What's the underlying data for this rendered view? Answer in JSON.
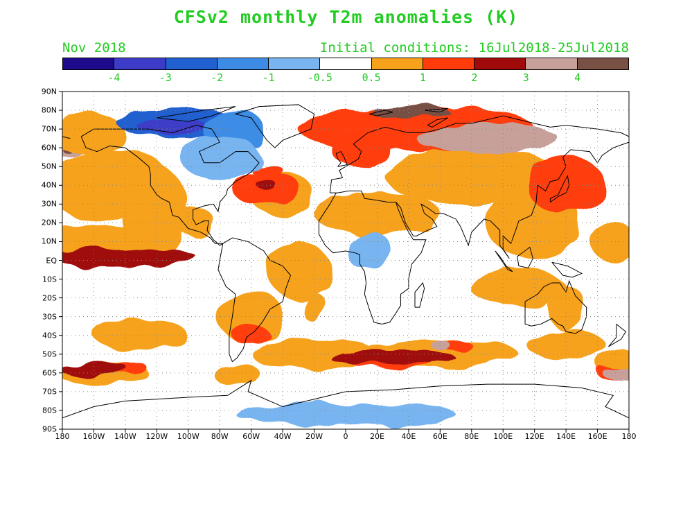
{
  "title": "CFSv2 monthly T2m anomalies (K)",
  "month_label": "Nov 2018",
  "init_label": "Initial conditions: 16Jul2018-25Jul2018",
  "text_color": "#22cc22",
  "colorbar": {
    "colors": [
      "#1e0a8c",
      "#3c3cc8",
      "#2060d0",
      "#3c8ce6",
      "#78b4f0",
      "#ffffff",
      "#f7a21b",
      "#ff3c0a",
      "#a00a0a",
      "#c8a09a",
      "#785044"
    ],
    "labels": [
      "-4",
      "-3",
      "-2",
      "-1",
      "-0.5",
      "0.5",
      "1",
      "2",
      "3",
      "4"
    ]
  },
  "axes": {
    "lat_labels": [
      "90N",
      "80N",
      "70N",
      "60N",
      "50N",
      "40N",
      "30N",
      "20N",
      "10N",
      "EQ",
      "10S",
      "20S",
      "30S",
      "40S",
      "50S",
      "60S",
      "70S",
      "80S",
      "90S"
    ],
    "lon_labels": [
      "180",
      "160W",
      "140W",
      "120W",
      "100W",
      "80W",
      "60W",
      "40W",
      "20W",
      "0",
      "20E",
      "40E",
      "60E",
      "80E",
      "100E",
      "120E",
      "140E",
      "160E",
      "180"
    ],
    "lat_range": [
      -90,
      90
    ],
    "lon_range": [
      -180,
      180
    ],
    "grid": "dotted"
  },
  "anomaly_regions": [
    {
      "lon": -178,
      "lat": 60,
      "value": 3,
      "rx": 10,
      "ry": 4
    },
    {
      "lon": -178,
      "lat": 60,
      "value": 4,
      "rx": 3,
      "ry": 2
    },
    {
      "lon": -165,
      "lat": 68,
      "value": 0.5,
      "rx": 25,
      "ry": 10
    },
    {
      "lon": -105,
      "lat": 73,
      "value": -2,
      "rx": 40,
      "ry": 8
    },
    {
      "lon": -110,
      "lat": 71,
      "value": -3,
      "rx": 22,
      "ry": 4
    },
    {
      "lon": -70,
      "lat": 68,
      "value": -1,
      "rx": 20,
      "ry": 12
    },
    {
      "lon": -80,
      "lat": 55,
      "value": -0.5,
      "rx": 25,
      "ry": 12
    },
    {
      "lon": -50,
      "lat": 38,
      "value": 1,
      "rx": 22,
      "ry": 9
    },
    {
      "lon": -50,
      "lat": 40,
      "value": 2,
      "rx": 6,
      "ry": 3
    },
    {
      "lon": 40,
      "lat": 70,
      "value": 1,
      "rx": 70,
      "ry": 12
    },
    {
      "lon": 90,
      "lat": 65,
      "value": 3,
      "rx": 45,
      "ry": 8
    },
    {
      "lon": 40,
      "lat": 80,
      "value": 4,
      "rx": 25,
      "ry": 3
    },
    {
      "lon": 140,
      "lat": 40,
      "value": 1,
      "rx": 25,
      "ry": 15
    },
    {
      "lon": -145,
      "lat": 2,
      "value": 2,
      "rx": 50,
      "ry": 5
    },
    {
      "lon": 15,
      "lat": 5,
      "value": -0.5,
      "rx": 15,
      "ry": 10
    },
    {
      "lon": -160,
      "lat": -58,
      "value": 2,
      "rx": 22,
      "ry": 4
    },
    {
      "lon": 30,
      "lat": -52,
      "value": 2,
      "rx": 40,
      "ry": 4
    },
    {
      "lon": 60,
      "lat": -45,
      "value": 3,
      "rx": 6,
      "ry": 3
    },
    {
      "lon": 175,
      "lat": -60,
      "value": 3,
      "rx": 12,
      "ry": 4
    },
    {
      "lon": 0,
      "lat": -82,
      "value": -0.5,
      "rx": 70,
      "ry": 6
    }
  ]
}
